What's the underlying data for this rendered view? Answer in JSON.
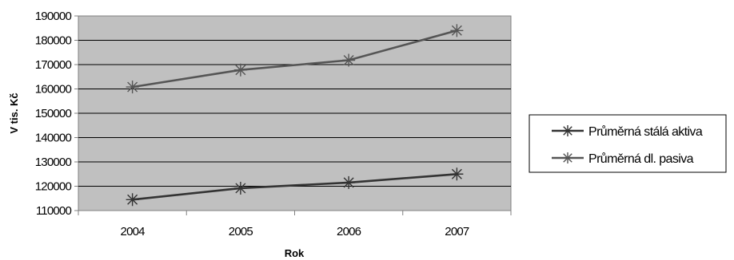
{
  "chart_data": {
    "type": "line",
    "title": "",
    "xlabel": "Rok",
    "ylabel": "V tis. Kč",
    "categories": [
      "2004",
      "2005",
      "2006",
      "2007"
    ],
    "ylim": [
      110000,
      190000
    ],
    "yticks": [
      110000,
      120000,
      130000,
      140000,
      150000,
      160000,
      170000,
      180000,
      190000
    ],
    "ytick_labels": [
      "110000",
      "120000",
      "130000",
      "140000",
      "150000",
      "160000",
      "170000",
      "180000",
      "190000"
    ],
    "grid": true,
    "legend_position": "right",
    "plot_background": "#c0c0c0",
    "series": [
      {
        "name": "Průměrná stálá aktiva",
        "values": [
          114500,
          119200,
          121500,
          125000
        ],
        "color": "#333333",
        "marker": "asterisk"
      },
      {
        "name": "Průměrná dl. pasiva",
        "values": [
          160800,
          167800,
          171800,
          184000
        ],
        "color": "#555555",
        "marker": "asterisk"
      }
    ]
  }
}
